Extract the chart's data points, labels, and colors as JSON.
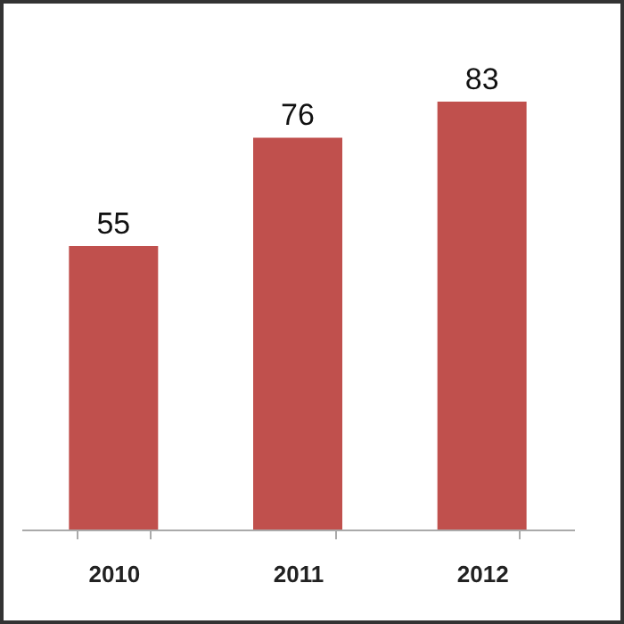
{
  "chart_data": {
    "type": "bar",
    "categories": [
      "2010",
      "2011",
      "2012"
    ],
    "values": [
      55,
      76,
      83
    ],
    "color": "#c0504d",
    "data_labels": true,
    "tick_labels": "x"
  }
}
